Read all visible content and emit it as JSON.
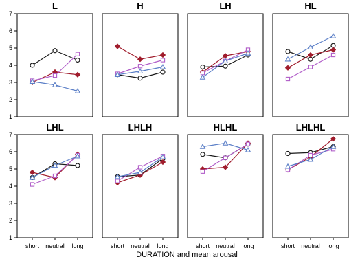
{
  "chart_data": {
    "type": "line",
    "xlabel": "DURATION and mean arousal",
    "x_categories": [
      "short",
      "neutral",
      "long"
    ],
    "ylim": [
      1,
      7
    ],
    "yticks": [
      1,
      2,
      3,
      4,
      5,
      6,
      7
    ],
    "grid": false,
    "series_styles": [
      {
        "color": "#1a1a1a",
        "marker": "circle"
      },
      {
        "color": "#a01c2c",
        "marker": "diamond"
      },
      {
        "color": "#b05cc8",
        "marker": "square"
      },
      {
        "color": "#5b7fc7",
        "marker": "triangle"
      }
    ],
    "panels": [
      {
        "title": "L",
        "series": [
          [
            4.0,
            4.85,
            4.3
          ],
          [
            3.0,
            3.6,
            3.45
          ],
          [
            3.1,
            3.4,
            4.65
          ],
          [
            3.05,
            2.85,
            2.5
          ]
        ]
      },
      {
        "title": "H",
        "series": [
          [
            3.45,
            3.25,
            3.6
          ],
          [
            5.1,
            4.35,
            4.6
          ],
          [
            3.5,
            3.95,
            4.3
          ],
          [
            3.45,
            3.65,
            3.9
          ]
        ]
      },
      {
        "title": "LH",
        "series": [
          [
            3.9,
            3.95,
            4.6
          ],
          [
            3.6,
            4.55,
            4.8
          ],
          [
            3.55,
            4.25,
            4.9
          ],
          [
            3.3,
            4.25,
            4.7
          ]
        ]
      },
      {
        "title": "HL",
        "series": [
          [
            4.8,
            4.35,
            5.15
          ],
          [
            3.85,
            4.6,
            4.9
          ],
          [
            3.2,
            3.9,
            4.6
          ],
          [
            4.35,
            5.05,
            5.7
          ]
        ]
      },
      {
        "title": "LHL",
        "series": [
          [
            4.5,
            5.3,
            5.2
          ],
          [
            4.8,
            4.5,
            5.85
          ],
          [
            4.1,
            4.6,
            5.8
          ],
          [
            4.5,
            5.2,
            5.75
          ]
        ]
      },
      {
        "title": "LHLH",
        "series": [
          [
            4.55,
            4.65,
            5.6
          ],
          [
            4.2,
            4.65,
            5.4
          ],
          [
            4.3,
            5.1,
            5.75
          ],
          [
            4.55,
            4.8,
            5.7
          ]
        ]
      },
      {
        "title": "HLHL",
        "series": [
          [
            5.85,
            5.65,
            6.45
          ],
          [
            5.0,
            5.1,
            6.5
          ],
          [
            4.85,
            5.65,
            6.45
          ],
          [
            6.3,
            6.5,
            6.1
          ]
        ]
      },
      {
        "title": "LHLHL",
        "series": [
          [
            5.9,
            5.95,
            6.3
          ],
          [
            4.95,
            5.7,
            6.75
          ],
          [
            4.95,
            5.8,
            6.15
          ],
          [
            5.15,
            5.55,
            6.3
          ]
        ]
      }
    ]
  }
}
